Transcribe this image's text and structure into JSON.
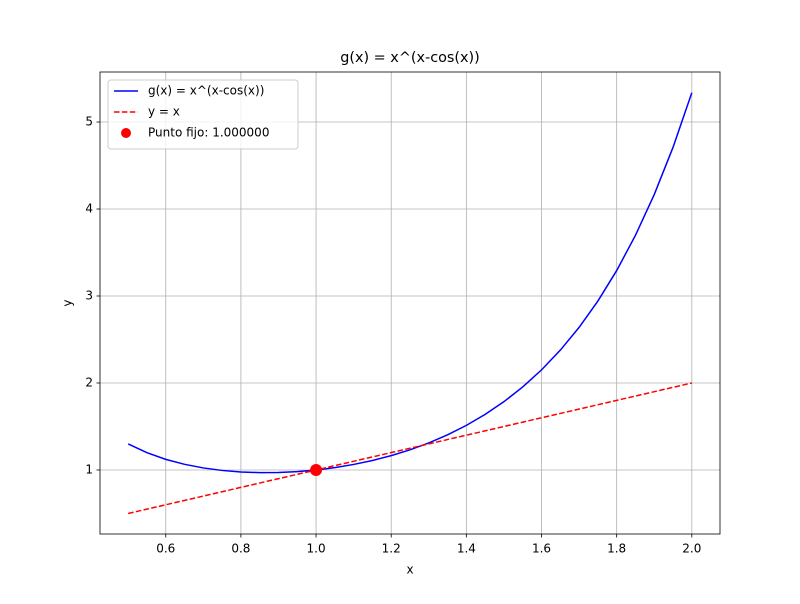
{
  "chart_data": {
    "type": "line",
    "title": "g(x) = x^(x-cos(x))",
    "xlabel": "x",
    "ylabel": "y",
    "xlim": [
      0.425,
      2.075
    ],
    "ylim": [
      0.264,
      5.575
    ],
    "xticks": [
      0.6,
      0.8,
      {
        "value": 1.0,
        "label": "1.0"
      },
      1.2,
      1.4,
      1.6,
      1.8,
      {
        "value": 2.0,
        "label": "2.0"
      }
    ],
    "yticks": [
      1,
      2,
      3,
      4,
      5
    ],
    "grid": true,
    "legend": "upper-left",
    "series": [
      {
        "name": "g(x) = x^(x-cos(x))",
        "color": "#0000ff",
        "style": "solid",
        "x": [
          0.5,
          0.55,
          0.6,
          0.65,
          0.7,
          0.75,
          0.8,
          0.85,
          0.9,
          0.95,
          1.0,
          1.05,
          1.1,
          1.15,
          1.2,
          1.25,
          1.3,
          1.35,
          1.4,
          1.45,
          1.5,
          1.55,
          1.6,
          1.65,
          1.7,
          1.75,
          1.8,
          1.85,
          1.9,
          1.95,
          2.0
        ],
        "values": [
          1.2991,
          1.1982,
          1.122,
          1.065,
          1.0234,
          0.9947,
          0.9772,
          0.9696,
          0.9711,
          0.9813,
          1.0,
          1.0273,
          1.0636,
          1.1092,
          1.165,
          1.2319,
          1.3111,
          1.4041,
          1.5127,
          1.6389,
          1.7852,
          1.9546,
          2.1506,
          2.3772,
          2.6391,
          2.9419,
          3.2923,
          3.6974,
          4.1664,
          4.7092,
          5.3372
        ]
      },
      {
        "name": "y = x",
        "color": "#ff0000",
        "style": "dashed",
        "x": [
          0.5,
          2.0
        ],
        "values": [
          0.5,
          2.0
        ]
      },
      {
        "name": "Punto fijo: 1.000000",
        "color": "#ff0000",
        "style": "point",
        "x": [
          1.0
        ],
        "values": [
          1.0
        ]
      }
    ]
  }
}
